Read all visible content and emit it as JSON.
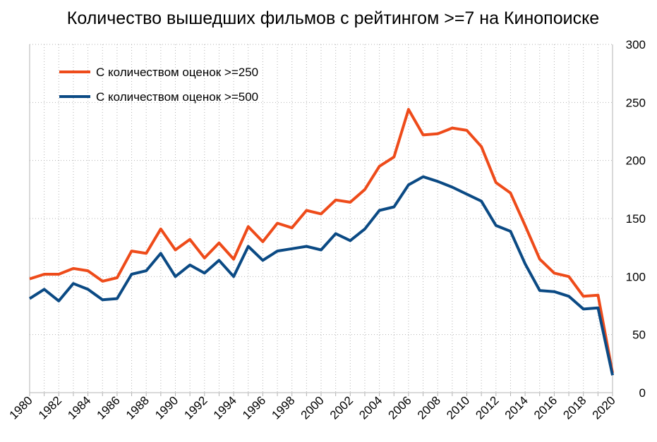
{
  "chart_data": {
    "type": "line",
    "title": "Количество вышедших фильмов с рейтингом >=7 на Кинопоиске",
    "xlabel": "",
    "ylabel": "",
    "x": [
      1980,
      1981,
      1982,
      1983,
      1984,
      1985,
      1986,
      1987,
      1988,
      1989,
      1990,
      1991,
      1992,
      1993,
      1994,
      1995,
      1996,
      1997,
      1998,
      1999,
      2000,
      2001,
      2002,
      2003,
      2004,
      2005,
      2006,
      2007,
      2008,
      2009,
      2010,
      2011,
      2012,
      2013,
      2014,
      2015,
      2016,
      2017,
      2018,
      2019,
      2020
    ],
    "xlim": [
      1980,
      2020
    ],
    "ylim": [
      0,
      300
    ],
    "x_ticks": [
      "1980",
      "1982",
      "1984",
      "1986",
      "1988",
      "1990",
      "1992",
      "1994",
      "1996",
      "1998",
      "2000",
      "2002",
      "2004",
      "2006",
      "2008",
      "2010",
      "2012",
      "2014",
      "2016",
      "2018",
      "2020"
    ],
    "y_ticks": [
      "0",
      "50",
      "100",
      "150",
      "200",
      "250",
      "300"
    ],
    "y_axis_side": "right",
    "grid": "dotted",
    "legend_position": "top-left",
    "series": [
      {
        "name": "С количеством оценок >=250",
        "color": "#ee4b1a",
        "values": [
          98,
          102,
          102,
          107,
          105,
          96,
          99,
          122,
          120,
          141,
          123,
          132,
          116,
          129,
          115,
          143,
          130,
          146,
          142,
          157,
          154,
          166,
          164,
          175,
          195,
          203,
          244,
          222,
          223,
          228,
          226,
          212,
          181,
          172,
          144,
          115,
          103,
          100,
          83,
          84,
          17
        ]
      },
      {
        "name": "С количеством оценок >=500",
        "color": "#0b4a84",
        "values": [
          81,
          89,
          79,
          94,
          89,
          80,
          81,
          102,
          105,
          120,
          100,
          110,
          103,
          114,
          100,
          126,
          114,
          122,
          124,
          126,
          123,
          137,
          131,
          141,
          157,
          160,
          179,
          186,
          182,
          177,
          171,
          165,
          144,
          139,
          111,
          88,
          87,
          83,
          72,
          73,
          15
        ]
      }
    ]
  }
}
